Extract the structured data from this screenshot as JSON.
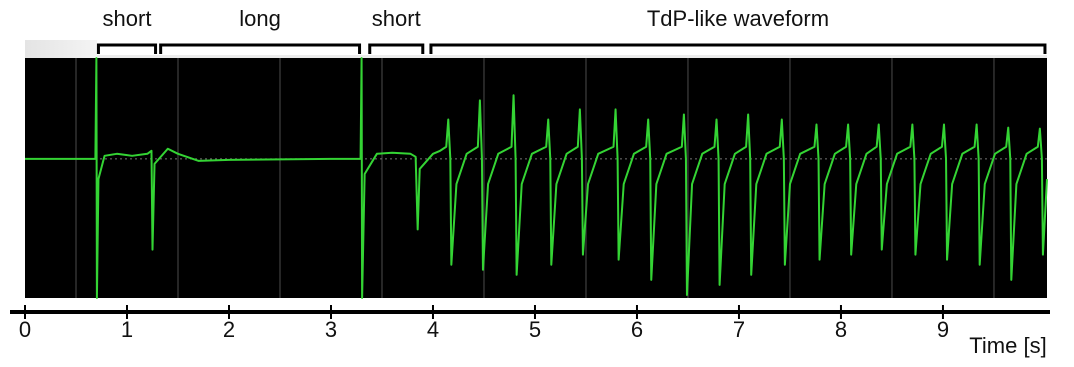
{
  "chart_data": {
    "type": "line",
    "xlabel": "Time [s]",
    "color": "#34d434",
    "xlim": [
      0,
      10.02
    ],
    "ylim": [
      -1.38,
      1
    ],
    "xticks": [
      0,
      1,
      2,
      3,
      4,
      5,
      6,
      7,
      8,
      9
    ],
    "xgrid": [
      0.5,
      1.5,
      2.5,
      3.5,
      4.5,
      5.5,
      6.5,
      7.5,
      8.5,
      9.5
    ],
    "ygrid": [
      0
    ],
    "annotations": [
      {
        "text": "short",
        "x": [
          0.72,
          1.28
        ]
      },
      {
        "text": "long",
        "x": [
          1.33,
          3.28
        ]
      },
      {
        "text": "short",
        "x": [
          3.38,
          3.9
        ]
      },
      {
        "text": "TdP-like waveform",
        "x": [
          3.98,
          10.0
        ]
      }
    ],
    "x": [
      0,
      0.69,
      0.7,
      0.705,
      0.72,
      0.78,
      0.9,
      1.05,
      1.2,
      1.24,
      1.25,
      1.27,
      1.4,
      1.5,
      1.7,
      2.0,
      3.0,
      3.29,
      3.3,
      3.305,
      3.33,
      3.45,
      3.6,
      3.78,
      3.83,
      3.85,
      3.87,
      4.0,
      4.07,
      4.13,
      4.15,
      4.17,
      4.18,
      4.23,
      4.33,
      4.44,
      4.46,
      4.48,
      4.49,
      4.54,
      4.64,
      4.77,
      4.79,
      4.81,
      4.82,
      4.87,
      4.97,
      5.11,
      5.13,
      5.15,
      5.16,
      5.21,
      5.31,
      5.42,
      5.44,
      5.46,
      5.47,
      5.52,
      5.62,
      5.77,
      5.79,
      5.81,
      5.82,
      5.87,
      5.97,
      6.09,
      6.11,
      6.13,
      6.14,
      6.19,
      6.29,
      6.44,
      6.46,
      6.48,
      6.49,
      6.54,
      6.64,
      6.76,
      6.78,
      6.8,
      6.81,
      6.86,
      6.96,
      7.07,
      7.09,
      7.11,
      7.12,
      7.17,
      7.27,
      7.4,
      7.42,
      7.44,
      7.45,
      7.5,
      7.6,
      7.74,
      7.76,
      7.78,
      7.79,
      7.84,
      7.94,
      8.05,
      8.07,
      8.09,
      8.1,
      8.15,
      8.25,
      8.35,
      8.37,
      8.39,
      8.4,
      8.45,
      8.55,
      8.68,
      8.7,
      8.72,
      8.73,
      8.78,
      8.88,
      8.99,
      9.01,
      9.03,
      9.04,
      9.09,
      9.19,
      9.31,
      9.33,
      9.35,
      9.36,
      9.41,
      9.51,
      9.62,
      9.64,
      9.66,
      9.67,
      9.72,
      9.82,
      9.93,
      9.95,
      9.97,
      9.98,
      10.02
    ],
    "values": [
      0,
      0,
      1,
      -1.38,
      -0.2,
      0.03,
      0.05,
      0.03,
      0.05,
      0.08,
      -0.9,
      -0.05,
      0.1,
      0.05,
      -0.02,
      -0.01,
      0,
      0,
      1,
      -1.38,
      -0.15,
      0.05,
      0.06,
      0.05,
      0.02,
      -0.7,
      -0.1,
      0.05,
      0.08,
      0.12,
      0.39,
      0,
      -1.05,
      -0.25,
      0.05,
      0.12,
      0.58,
      0,
      -1.1,
      -0.25,
      0.05,
      0.12,
      0.63,
      0,
      -1.15,
      -0.25,
      0.05,
      0.12,
      0.39,
      0,
      -1.05,
      -0.25,
      0.05,
      0.12,
      0.49,
      0,
      -0.95,
      -0.25,
      0.05,
      0.12,
      0.49,
      0,
      -1.0,
      -0.25,
      0.05,
      0.12,
      0.39,
      0,
      -1.2,
      -0.25,
      0.05,
      0.12,
      0.44,
      0,
      -1.35,
      -0.25,
      0.05,
      0.12,
      0.39,
      0,
      -1.25,
      -0.25,
      0.05,
      0.12,
      0.44,
      0,
      -1.15,
      -0.25,
      0.05,
      0.12,
      0.39,
      0,
      -1.05,
      -0.25,
      0.05,
      0.12,
      0.34,
      0,
      -1.0,
      -0.25,
      0.05,
      0.12,
      0.34,
      0,
      -0.95,
      -0.25,
      0.05,
      0.12,
      0.34,
      0,
      -0.9,
      -0.25,
      0.05,
      0.12,
      0.34,
      0,
      -0.95,
      -0.25,
      0.05,
      0.12,
      0.34,
      0,
      -1.0,
      -0.25,
      0.05,
      0.12,
      0.34,
      0,
      -1.05,
      -0.25,
      0.05,
      0.12,
      0.31,
      0,
      -1.2,
      -0.25,
      0.05,
      0.12,
      0.3,
      0,
      -0.95,
      -0.2
    ]
  }
}
